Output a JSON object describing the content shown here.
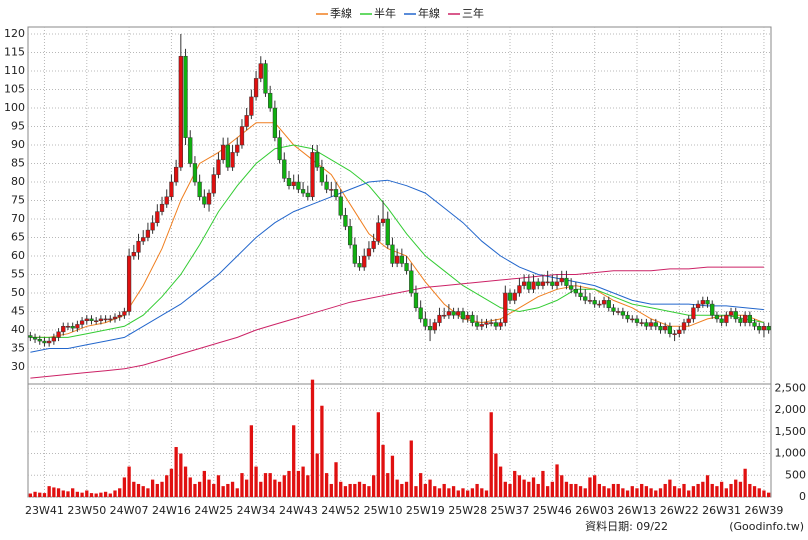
{
  "chart_data": {
    "type": "candlestick",
    "categories": [
      null,
      null,
      null,
      "23W41",
      null,
      null,
      null,
      null,
      null,
      null,
      null,
      null,
      "23W50",
      null,
      null,
      null,
      null,
      null,
      null,
      null,
      null,
      "24W07",
      null,
      null,
      null,
      null,
      null,
      null,
      null,
      null,
      "24W16",
      null,
      null,
      null,
      null,
      null,
      null,
      null,
      null,
      "24W25",
      null,
      null,
      null,
      null,
      null,
      null,
      null,
      null,
      "24W34",
      null,
      null,
      null,
      null,
      null,
      null,
      null,
      null,
      "24W43",
      null,
      null,
      null,
      null,
      null,
      null,
      null,
      null,
      "24W52",
      null,
      null,
      null,
      null,
      null,
      null,
      null,
      null,
      "25W10",
      null,
      null,
      null,
      null,
      null,
      null,
      null,
      null,
      "25W19",
      null,
      null,
      null,
      null,
      null,
      null,
      null,
      null,
      "25W28",
      null,
      null,
      null,
      null,
      null,
      null,
      null,
      null,
      "25W37",
      null,
      null,
      null,
      null,
      null,
      null,
      null,
      null,
      "25W46",
      null,
      null,
      null,
      null,
      null,
      null,
      null,
      null,
      "26W03",
      null,
      null,
      null,
      null,
      null,
      null,
      null,
      null,
      "26W13",
      null,
      null,
      null,
      null,
      null,
      null,
      null,
      null,
      "26W22",
      null,
      null,
      null,
      null,
      null,
      null,
      null,
      null,
      "26W31",
      null,
      null,
      null,
      null,
      null,
      null,
      null,
      null,
      "26W39",
      null
    ],
    "open": [
      38.5,
      38,
      37.5,
      37,
      36.5,
      37,
      38,
      39.5,
      41,
      41,
      40.5,
      41.5,
      42.5,
      43,
      42.5,
      42.5,
      43,
      43,
      43,
      43.5,
      44,
      45,
      60,
      61,
      64,
      65,
      67,
      69,
      72,
      74,
      76,
      80,
      84,
      114,
      92,
      85,
      80,
      76,
      74,
      77,
      82,
      86,
      90,
      84,
      88,
      90,
      95,
      98,
      103,
      108,
      112,
      104,
      100,
      92,
      86,
      81,
      79,
      80,
      78,
      77,
      76,
      88,
      84,
      80,
      78,
      78,
      76,
      71,
      68,
      63,
      58,
      57,
      60,
      62,
      64,
      69,
      70,
      63,
      58,
      60,
      58,
      56,
      50,
      46,
      43,
      41,
      40,
      42,
      44,
      44,
      45,
      44,
      45,
      43,
      44,
      42,
      41,
      41.5,
      42,
      42,
      41,
      42,
      50,
      48,
      50,
      52,
      53,
      51,
      53,
      52,
      53,
      53,
      52,
      53,
      54,
      52,
      51,
      50,
      49,
      48,
      48,
      47,
      47,
      48,
      46,
      45,
      45,
      44,
      43,
      43,
      42,
      42,
      41,
      42,
      41,
      40,
      41,
      39,
      39,
      40,
      42,
      43,
      46,
      47,
      48,
      47,
      44,
      43,
      42,
      44,
      45,
      43,
      42,
      44,
      42,
      41,
      40,
      41
    ],
    "high": [
      39.5,
      39,
      38.5,
      38,
      38,
      39,
      40.5,
      42,
      42,
      42,
      42.5,
      43.5,
      44,
      44,
      43.5,
      44,
      44,
      44,
      44.5,
      45,
      46,
      62,
      63,
      66,
      67,
      69,
      71,
      74,
      76,
      78,
      82,
      86,
      120,
      116,
      94,
      87,
      82,
      78,
      78,
      84,
      88,
      92,
      92,
      90,
      92,
      97,
      100,
      105,
      110,
      114,
      113,
      106,
      102,
      94,
      88,
      83,
      82,
      82,
      80,
      79,
      90,
      90,
      86,
      82,
      80,
      80,
      78,
      73,
      70,
      65,
      60,
      62,
      64,
      66,
      71,
      75,
      72,
      65,
      62,
      62,
      60,
      58,
      52,
      48,
      45,
      43,
      43,
      46,
      46,
      47,
      46,
      46,
      46,
      45,
      45,
      44,
      43,
      43,
      43,
      43,
      43,
      52,
      51,
      51,
      54,
      55,
      55,
      55,
      54,
      55,
      56,
      55,
      55,
      56,
      56,
      54,
      53,
      52,
      51,
      50,
      49,
      48,
      49,
      49,
      47,
      46,
      46,
      45,
      44,
      44,
      43,
      43,
      43,
      43,
      42,
      42,
      42,
      40,
      41,
      43,
      44,
      47,
      48,
      49,
      49,
      48,
      45,
      44,
      45,
      46,
      46,
      44,
      45,
      45,
      43,
      42,
      42,
      42
    ],
    "low": [
      37,
      36.5,
      36,
      35.5,
      35.5,
      36,
      37,
      38.5,
      40,
      39.5,
      39.5,
      40.5,
      41.5,
      41.5,
      41.5,
      41.5,
      42,
      42,
      42,
      42.5,
      43,
      44,
      59,
      59,
      63,
      64,
      66,
      68,
      71,
      73,
      75,
      79,
      83,
      90,
      84,
      79,
      75,
      73,
      72,
      76,
      81,
      85,
      83,
      83,
      87,
      89,
      94,
      97,
      102,
      107,
      103,
      99,
      91,
      85,
      80,
      78,
      78,
      77,
      76,
      75,
      75,
      83,
      79,
      77,
      76,
      75,
      70,
      67,
      62,
      57,
      56,
      56,
      59,
      61,
      63,
      68,
      62,
      57,
      57,
      57,
      55,
      49,
      45,
      42,
      40,
      37,
      39,
      41,
      43,
      43,
      43,
      43,
      42,
      42,
      41,
      40,
      40,
      40.5,
      41,
      40,
      40,
      41,
      47,
      47,
      49,
      51,
      50,
      50,
      51,
      51,
      52,
      51,
      51,
      52,
      51,
      50,
      49,
      48,
      47,
      47,
      46,
      46,
      46,
      45,
      44,
      44,
      43,
      42,
      42,
      41,
      41,
      40,
      40,
      40,
      39,
      39,
      38,
      37,
      38,
      39,
      41,
      42,
      45,
      46,
      46,
      43,
      42,
      41,
      41,
      43,
      42,
      41,
      41,
      41,
      40,
      39,
      38,
      39
    ],
    "close": [
      38,
      37.5,
      37,
      36.5,
      37,
      38,
      39.5,
      41,
      41,
      40.5,
      41.5,
      42.5,
      43,
      42.5,
      42.5,
      43,
      43,
      43,
      43.5,
      44,
      45,
      60,
      61,
      64,
      65,
      67,
      69,
      72,
      74,
      76,
      80,
      84,
      114,
      92,
      85,
      80,
      76,
      74,
      77,
      82,
      86,
      90,
      84,
      88,
      90,
      95,
      98,
      103,
      108,
      112,
      104,
      100,
      92,
      86,
      81,
      79,
      80,
      78,
      77,
      76,
      88,
      84,
      80,
      78,
      78,
      76,
      71,
      68,
      63,
      58,
      57,
      60,
      62,
      64,
      69,
      70,
      63,
      58,
      60,
      58,
      56,
      50,
      46,
      43,
      41,
      40,
      42,
      44,
      44,
      45,
      44,
      45,
      43,
      44,
      42,
      41,
      41.5,
      42,
      42,
      41,
      42,
      50,
      48,
      50,
      52,
      53,
      51,
      53,
      52,
      53,
      53,
      52,
      53,
      54,
      52,
      51,
      50,
      49,
      48,
      48,
      47,
      47,
      48,
      46,
      45,
      45,
      44,
      43,
      43,
      42,
      42,
      41,
      42,
      41,
      40,
      41,
      39,
      39,
      40,
      42,
      43,
      46,
      47,
      48,
      47,
      44,
      43,
      42,
      44,
      45,
      43,
      42,
      44,
      42,
      41,
      40,
      41,
      40
    ],
    "color_up": "#e01010",
    "color_down": "#10b010",
    "ylim": [
      25.4,
      121.9
    ],
    "yticks": [
      30,
      35,
      40,
      45,
      50,
      55,
      60,
      65,
      70,
      75,
      80,
      85,
      90,
      95,
      100,
      105,
      110,
      115,
      120
    ],
    "grid": true,
    "legend": "top",
    "lines": [
      {
        "name": "季線",
        "color": "#f07f20",
        "x": [
          0,
          4,
          8,
          12,
          16,
          20,
          24,
          28,
          32,
          36,
          40,
          44,
          48,
          52,
          56,
          60,
          64,
          68,
          72,
          76,
          80,
          84,
          88,
          92,
          96,
          100,
          104,
          108,
          112,
          116,
          120,
          124,
          128,
          132,
          136,
          140,
          144,
          148,
          152,
          156
        ],
        "values": [
          38,
          38,
          39,
          41,
          42,
          44,
          52,
          62,
          75,
          85,
          88,
          92,
          96,
          96,
          90,
          86,
          82,
          74,
          66,
          62,
          60,
          53,
          47,
          43,
          42,
          43,
          46,
          49,
          51,
          52,
          51,
          48,
          46,
          43,
          41,
          41,
          43,
          44,
          44,
          42
        ]
      },
      {
        "name": "半年",
        "color": "#33cc33",
        "x": [
          0,
          4,
          8,
          12,
          16,
          20,
          24,
          28,
          32,
          36,
          40,
          44,
          48,
          52,
          56,
          60,
          64,
          68,
          72,
          76,
          80,
          84,
          88,
          92,
          96,
          100,
          104,
          108,
          112,
          116,
          120,
          124,
          128,
          132,
          136,
          140,
          144,
          148,
          152,
          156
        ],
        "values": [
          38,
          38,
          38,
          39,
          40,
          41,
          44,
          49,
          55,
          63,
          72,
          79,
          85,
          89,
          90,
          89,
          86,
          83,
          79,
          73,
          66,
          60,
          56,
          52,
          49,
          46,
          45,
          46,
          48,
          51,
          51,
          49,
          47,
          46,
          45,
          44,
          44,
          44,
          43,
          42
        ]
      },
      {
        "name": "年線",
        "color": "#2266cc",
        "x": [
          0,
          4,
          8,
          12,
          16,
          20,
          24,
          28,
          32,
          36,
          40,
          44,
          48,
          52,
          56,
          60,
          64,
          68,
          72,
          76,
          80,
          84,
          88,
          92,
          96,
          100,
          104,
          108,
          112,
          116,
          120,
          124,
          128,
          132,
          136,
          140,
          144,
          148,
          152,
          156
        ],
        "values": [
          34,
          35,
          35,
          36,
          37,
          38,
          41,
          44,
          47,
          51,
          55,
          60,
          65,
          69,
          72,
          74,
          76,
          78,
          80,
          80.5,
          79,
          77,
          73,
          69,
          64,
          60,
          57,
          55,
          54,
          53,
          52,
          50,
          48,
          47,
          47,
          47,
          46.5,
          46.5,
          46,
          45.5
        ]
      },
      {
        "name": "三年",
        "color": "#cc2266",
        "x": [
          0,
          4,
          8,
          12,
          16,
          20,
          24,
          28,
          32,
          36,
          40,
          44,
          48,
          52,
          56,
          60,
          64,
          68,
          72,
          76,
          80,
          84,
          88,
          92,
          96,
          100,
          104,
          108,
          112,
          116,
          120,
          124,
          128,
          132,
          136,
          140,
          144,
          148,
          152,
          156
        ],
        "values": [
          27,
          27.5,
          28,
          28.5,
          29,
          29.5,
          30.5,
          32,
          33.5,
          35,
          36.5,
          38,
          40,
          41.5,
          43,
          44.5,
          46,
          47.5,
          48.5,
          49.5,
          50.5,
          51.5,
          52,
          52.5,
          53,
          53.5,
          54,
          54.5,
          55,
          55,
          55.5,
          56,
          56,
          56,
          56.5,
          56.5,
          57,
          57,
          57,
          57
        ]
      }
    ],
    "volume": {
      "color": "#e01010",
      "ylim": [
        0,
        2600
      ],
      "yticks": [
        0,
        500,
        {
          "value": 1000,
          "label": "1,000"
        },
        {
          "value": 1500,
          "label": "1,500"
        },
        {
          "value": 2000,
          "label": "2,000"
        },
        {
          "value": 2500,
          "label": "2,500"
        }
      ],
      "values": [
        80,
        120,
        100,
        90,
        250,
        220,
        200,
        150,
        130,
        200,
        120,
        100,
        150,
        90,
        80,
        100,
        120,
        80,
        150,
        200,
        450,
        700,
        350,
        300,
        250,
        200,
        400,
        300,
        350,
        500,
        650,
        1150,
        1000,
        700,
        450,
        300,
        350,
        600,
        400,
        300,
        500,
        250,
        300,
        350,
        200,
        550,
        400,
        1650,
        700,
        350,
        550,
        550,
        400,
        350,
        500,
        600,
        1650,
        600,
        700,
        500,
        2700,
        1000,
        2100,
        550,
        300,
        800,
        350,
        250,
        300,
        300,
        350,
        300,
        250,
        500,
        1950,
        1200,
        550,
        950,
        400,
        300,
        350,
        1300,
        250,
        550,
        300,
        400,
        250,
        200,
        300,
        200,
        250,
        150,
        200,
        150,
        200,
        300,
        200,
        150,
        1950,
        1000,
        700,
        350,
        300,
        600,
        500,
        400,
        350,
        450,
        300,
        600,
        250,
        350,
        750,
        500,
        350,
        300,
        300,
        250,
        200,
        450,
        500,
        300,
        250,
        200,
        300,
        300,
        200,
        150,
        250,
        200,
        300,
        250,
        200,
        150,
        200,
        300,
        400,
        250,
        200,
        300,
        150,
        250,
        300,
        350,
        500,
        300,
        250,
        350,
        200,
        300,
        400,
        350,
        650,
        300,
        250,
        200,
        150,
        100
      ]
    },
    "footer": "資料日期: 09/22",
    "source": "(Goodinfo.tw)"
  }
}
